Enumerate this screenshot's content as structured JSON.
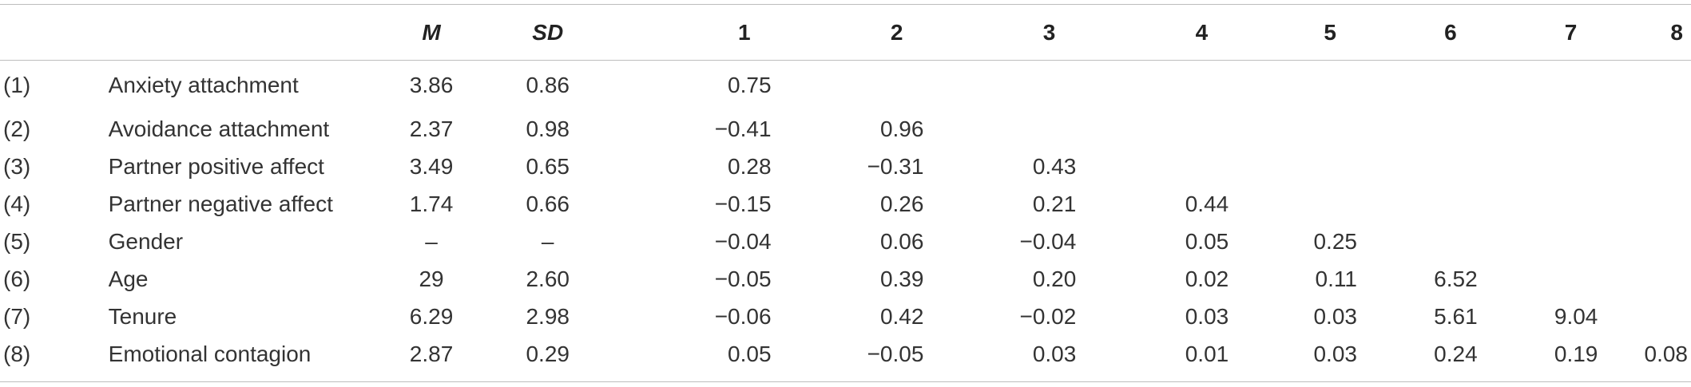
{
  "headers": {
    "index": "",
    "variable": "",
    "m": "M",
    "sd": "SD",
    "c1": "1",
    "c2": "2",
    "c3": "3",
    "c4": "4",
    "c5": "5",
    "c6": "6",
    "c7": "7",
    "c8": "8"
  },
  "rows": [
    {
      "idx": "(1)",
      "name": "Anxiety attachment",
      "m": "3.86",
      "sd": "0.86",
      "c": [
        "0.75",
        "",
        "",
        "",
        "",
        "",
        "",
        ""
      ]
    },
    {
      "idx": "(2)",
      "name": "Avoidance attachment",
      "m": "2.37",
      "sd": "0.98",
      "c": [
        "−0.41",
        "0.96",
        "",
        "",
        "",
        "",
        "",
        ""
      ]
    },
    {
      "idx": "(3)",
      "name": "Partner positive affect",
      "m": "3.49",
      "sd": "0.65",
      "c": [
        "0.28",
        "−0.31",
        "0.43",
        "",
        "",
        "",
        "",
        ""
      ]
    },
    {
      "idx": "(4)",
      "name": "Partner negative affect",
      "m": "1.74",
      "sd": "0.66",
      "c": [
        "−0.15",
        "0.26",
        "0.21",
        "0.44",
        "",
        "",
        "",
        ""
      ]
    },
    {
      "idx": "(5)",
      "name": "Gender",
      "m": "–",
      "sd": "–",
      "c": [
        "−0.04",
        "0.06",
        "−0.04",
        "0.05",
        "0.25",
        "",
        "",
        ""
      ]
    },
    {
      "idx": "(6)",
      "name": "Age",
      "m": "29",
      "sd": "2.60",
      "c": [
        "−0.05",
        "0.39",
        "0.20",
        "0.02",
        "0.11",
        "6.52",
        "",
        ""
      ]
    },
    {
      "idx": "(7)",
      "name": "Tenure",
      "m": "6.29",
      "sd": "2.98",
      "c": [
        "−0.06",
        "0.42",
        "−0.02",
        "0.03",
        "0.03",
        "5.61",
        "9.04",
        ""
      ]
    },
    {
      "idx": "(8)",
      "name": "Emotional contagion",
      "m": "2.87",
      "sd": "0.29",
      "c": [
        "0.05",
        "−0.05",
        "0.03",
        "0.01",
        "0.03",
        "0.24",
        "0.19",
        "0.08"
      ]
    }
  ]
}
